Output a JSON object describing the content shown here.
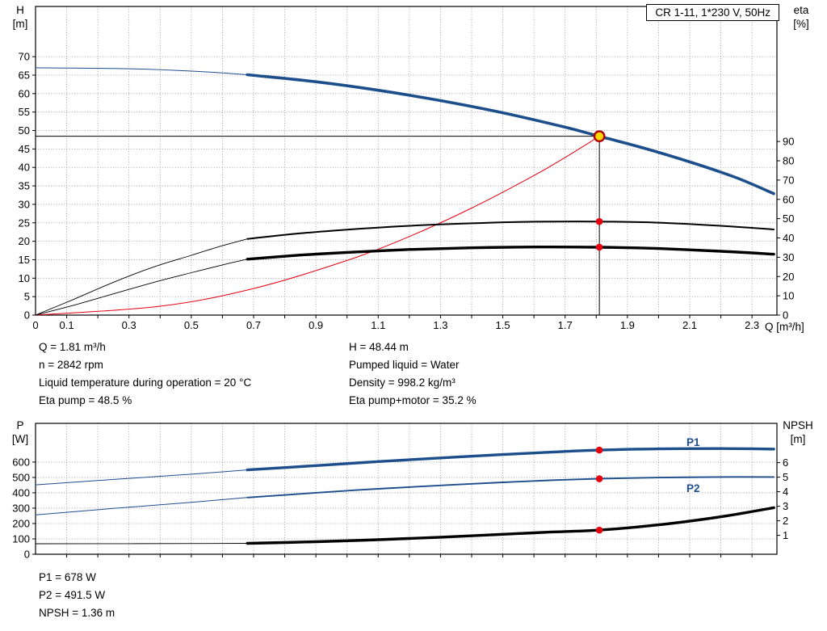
{
  "title_box": "CR 1-11, 1*230 V, 50Hz",
  "colors": {
    "curve_blue": "#1d4e8c",
    "curve_red": "#e3000f",
    "curve_black": "#000000",
    "grid": "#8c8c8c",
    "dot_red": "#e3000f",
    "duty_fill": "#ffd500",
    "duty_ring": "#b00000",
    "label_blue": "#1d4e8c"
  },
  "operating_point": {
    "q_m3h": 1.81,
    "h_m": 48.44,
    "n_rpm": 2842,
    "eta_pump_pct": 48.5,
    "eta_pump_motor_pct": 35.2,
    "p1_w": 678,
    "p2_w": 491.5,
    "npsh_m": 1.36,
    "liquid": "Water",
    "temperature_c": 20,
    "density_kgm3": 998.2
  },
  "info": {
    "top_left": [
      "Q = 1.81 m³/h",
      "n = 2842 rpm",
      "Liquid temperature during operation = 20 °C",
      "Eta pump = 48.5 %"
    ],
    "top_right": [
      "H = 48.44 m",
      "Pumped liquid = Water",
      "Density = 998.2 kg/m³",
      "Eta pump+motor = 35.2 %"
    ],
    "bottom": [
      "P1 = 678 W",
      "P2 = 491.5 W",
      "NPSH = 1.36 m"
    ]
  },
  "curve_labels": {
    "p1": "P1",
    "p2": "P2"
  },
  "chart_data": [
    {
      "type": "line",
      "title": "CR 1-11, 1*230 V, 50Hz",
      "x_axis": {
        "label": "Q [m³/h]",
        "min": 0,
        "max": 2.38,
        "grid_step": 0.1,
        "tick_values": [
          0,
          0.1,
          0.3,
          0.5,
          0.7,
          0.9,
          1.1,
          1.3,
          1.5,
          1.7,
          1.9,
          2.1,
          2.3
        ],
        "tick_labels": [
          "0",
          "0.1",
          "0.3",
          "0.5",
          "0.7",
          "0.9",
          "1.1",
          "1.3",
          "1.5",
          "1.7",
          "1.9",
          "2.1",
          "2.3"
        ]
      },
      "y_left": {
        "label": "H",
        "unit": "[m]",
        "min": 0,
        "max": 83.6,
        "tick_step": 5,
        "tick_max": 70
      },
      "y_right": {
        "label": "eta",
        "unit": "[%]",
        "min": 0,
        "max": 160,
        "tick_step": 10,
        "tick_min": 0,
        "tick_max": 90
      },
      "series": [
        {
          "name": "head-curve-thin",
          "axis": "left",
          "color": "blue",
          "width": 1,
          "points": [
            [
              0,
              67
            ],
            [
              0.25,
              66.8
            ],
            [
              0.45,
              66.3
            ],
            [
              0.6,
              65.6
            ],
            [
              0.68,
              65.1
            ]
          ]
        },
        {
          "name": "head-curve",
          "axis": "left",
          "color": "blue",
          "width": 3.6,
          "points": [
            [
              0.68,
              65.1
            ],
            [
              0.9,
              63.2
            ],
            [
              1.1,
              60.9
            ],
            [
              1.3,
              58.1
            ],
            [
              1.5,
              54.8
            ],
            [
              1.7,
              50.9
            ],
            [
              1.81,
              48.44
            ],
            [
              1.95,
              45.3
            ],
            [
              2.1,
              41.5
            ],
            [
              2.25,
              37.2
            ],
            [
              2.37,
              32.9
            ]
          ]
        },
        {
          "name": "system-curve",
          "axis": "left",
          "color": "red",
          "width": 1,
          "points": [
            [
              0,
              0
            ],
            [
              0.4,
              2.4
            ],
            [
              0.7,
              7.2
            ],
            [
              1.0,
              14.8
            ],
            [
              1.2,
              21.3
            ],
            [
              1.4,
              29.0
            ],
            [
              1.6,
              37.8
            ],
            [
              1.7,
              42.7
            ],
            [
              1.81,
              48.44
            ]
          ]
        },
        {
          "name": "eta-pump-thin",
          "axis": "right",
          "color": "black",
          "width": 0.9,
          "points": [
            [
              0,
              0
            ],
            [
              0.12,
              8
            ],
            [
              0.25,
              17
            ],
            [
              0.38,
              25
            ],
            [
              0.5,
              31
            ],
            [
              0.6,
              36
            ],
            [
              0.68,
              39.5
            ]
          ]
        },
        {
          "name": "eta-pump",
          "axis": "right",
          "color": "black",
          "width": 2,
          "points": [
            [
              0.68,
              39.5
            ],
            [
              0.85,
              42.4
            ],
            [
              1.0,
              44.3
            ],
            [
              1.2,
              46.3
            ],
            [
              1.4,
              47.6
            ],
            [
              1.6,
              48.4
            ],
            [
              1.81,
              48.5
            ],
            [
              2.0,
              47.9
            ],
            [
              2.2,
              46.3
            ],
            [
              2.37,
              44.4
            ]
          ]
        },
        {
          "name": "eta-pump-motor-thin",
          "axis": "right",
          "color": "black",
          "width": 0.9,
          "points": [
            [
              0,
              0
            ],
            [
              0.12,
              5
            ],
            [
              0.25,
              11
            ],
            [
              0.38,
              17
            ],
            [
              0.5,
              22
            ],
            [
              0.6,
              26
            ],
            [
              0.68,
              29
            ]
          ]
        },
        {
          "name": "eta-pump-motor",
          "axis": "right",
          "color": "black",
          "width": 3.4,
          "points": [
            [
              0.68,
              29
            ],
            [
              0.85,
              31.1
            ],
            [
              1.0,
              32.5
            ],
            [
              1.2,
              34.0
            ],
            [
              1.4,
              34.9
            ],
            [
              1.6,
              35.3
            ],
            [
              1.81,
              35.2
            ],
            [
              2.0,
              34.5
            ],
            [
              2.2,
              33.1
            ],
            [
              2.37,
              31.6
            ]
          ]
        }
      ],
      "duty_point": {
        "x": 1.81,
        "y": 48.44
      },
      "dots": [
        {
          "x": 1.81,
          "axis": "right",
          "y": 48.5
        },
        {
          "x": 1.81,
          "axis": "right",
          "y": 35.2
        }
      ]
    },
    {
      "type": "line",
      "title": "",
      "x_axis": {
        "label": "",
        "min": 0,
        "max": 2.38,
        "grid_step": 0.1,
        "tick_values": [
          0,
          0.1,
          0.3,
          0.5,
          0.7,
          0.9,
          1.1,
          1.3,
          1.5,
          1.7,
          1.9,
          2.1,
          2.3
        ],
        "tick_labels": null
      },
      "y_left": {
        "label": "P",
        "unit": "[W]",
        "min": 0,
        "max": 852,
        "tick_step": 100,
        "tick_max": 600
      },
      "y_right": {
        "label": "NPSH",
        "unit": "[m]",
        "min": -0.3,
        "max": 8.7,
        "tick_step": 1,
        "tick_min": 1,
        "tick_max": 6
      },
      "series": [
        {
          "name": "p1-curve-thin",
          "axis": "left",
          "color": "blue",
          "width": 1,
          "points": [
            [
              0,
              452
            ],
            [
              0.25,
              487
            ],
            [
              0.5,
              521
            ],
            [
              0.68,
              549
            ]
          ]
        },
        {
          "name": "p1-curve",
          "axis": "left",
          "color": "blue",
          "width": 3.4,
          "points": [
            [
              0.68,
              549
            ],
            [
              0.9,
              577
            ],
            [
              1.1,
              603
            ],
            [
              1.3,
              627
            ],
            [
              1.5,
              649
            ],
            [
              1.65,
              664
            ],
            [
              1.81,
              678
            ],
            [
              2.0,
              686
            ],
            [
              2.2,
              688
            ],
            [
              2.37,
              685
            ]
          ]
        },
        {
          "name": "p2-curve-thin",
          "axis": "left",
          "color": "blue",
          "width": 1,
          "points": [
            [
              0,
              256
            ],
            [
              0.25,
              298
            ],
            [
              0.5,
              338
            ],
            [
              0.68,
              369
            ]
          ]
        },
        {
          "name": "p2-curve",
          "axis": "left",
          "color": "blue",
          "width": 1.9,
          "points": [
            [
              0.68,
              369
            ],
            [
              0.9,
              400
            ],
            [
              1.1,
              426
            ],
            [
              1.3,
              448
            ],
            [
              1.5,
              468
            ],
            [
              1.65,
              481
            ],
            [
              1.81,
              491.5
            ],
            [
              2.0,
              499
            ],
            [
              2.2,
              503
            ],
            [
              2.37,
              503
            ]
          ]
        },
        {
          "name": "npsh-curve-thin",
          "axis": "right",
          "color": "black",
          "width": 0.9,
          "points": [
            [
              0,
              0.42
            ],
            [
              0.3,
              0.43
            ],
            [
              0.55,
              0.44
            ],
            [
              0.68,
              0.45
            ]
          ]
        },
        {
          "name": "npsh-curve",
          "axis": "right",
          "color": "black",
          "width": 3.4,
          "points": [
            [
              0.68,
              0.45
            ],
            [
              0.9,
              0.56
            ],
            [
              1.1,
              0.7
            ],
            [
              1.3,
              0.87
            ],
            [
              1.5,
              1.07
            ],
            [
              1.65,
              1.22
            ],
            [
              1.81,
              1.36
            ],
            [
              2.0,
              1.72
            ],
            [
              2.2,
              2.28
            ],
            [
              2.37,
              2.9
            ]
          ]
        }
      ],
      "dots": [
        {
          "x": 1.81,
          "axis": "left",
          "y": 678
        },
        {
          "x": 1.81,
          "axis": "left",
          "y": 491.5
        },
        {
          "x": 1.81,
          "axis": "right",
          "y": 1.36
        }
      ]
    }
  ]
}
